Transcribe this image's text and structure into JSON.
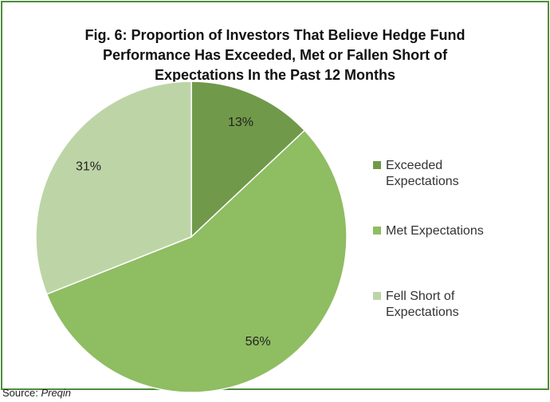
{
  "chart_data": {
    "type": "pie",
    "title": [
      "Fig. 6: Proportion of Investors That Believe Hedge Fund",
      "Performance Has Exceeded, Met or Fallen Short of",
      "Expectations In the Past 12 Months"
    ],
    "categories": [
      "Exceeded Expectations",
      "Met Expectations",
      "Fell Short of Expectations"
    ],
    "values": [
      13,
      56,
      31
    ],
    "value_labels": [
      "13%",
      "56%",
      "31%"
    ],
    "colors": [
      "#71994a",
      "#8fbd62",
      "#bdd5a6"
    ],
    "legend": "right",
    "source_label": "Source:",
    "source": "Preqin"
  }
}
